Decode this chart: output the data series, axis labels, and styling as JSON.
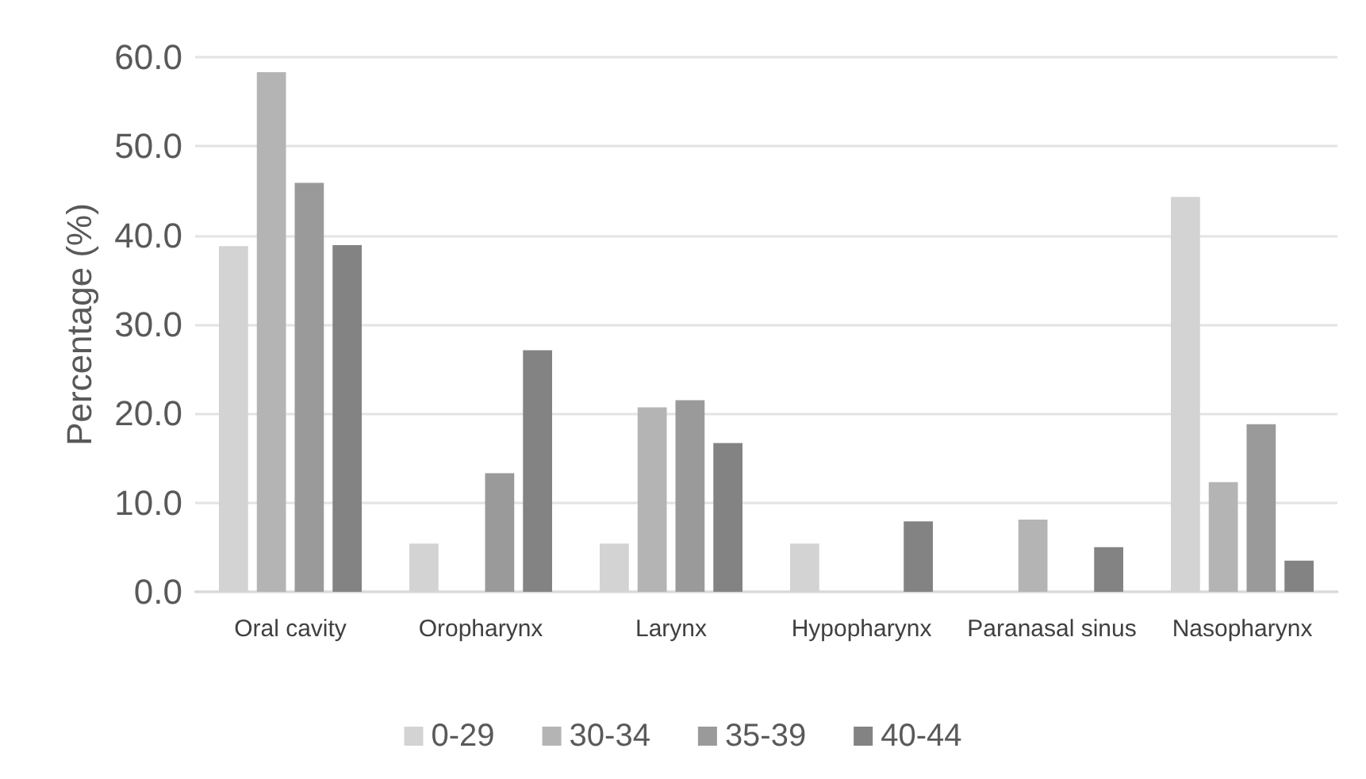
{
  "chart_data": {
    "type": "bar",
    "ylabel": "Percentage (%)",
    "categories": [
      "Oral cavity",
      "Oropharynx",
      "Larynx",
      "Hypopharynx",
      "Paranasal sinus",
      "Nasopharynx"
    ],
    "series": [
      {
        "name": "0-29",
        "color": "#d3d3d3",
        "values": [
          38.8,
          5.4,
          5.4,
          5.4,
          null,
          44.3
        ]
      },
      {
        "name": "30-34",
        "color": "#b4b4b4",
        "values": [
          58.3,
          null,
          20.7,
          null,
          8.1,
          12.3
        ]
      },
      {
        "name": "35-39",
        "color": "#9a9a9a",
        "values": [
          45.9,
          13.3,
          21.5,
          null,
          null,
          18.8
        ]
      },
      {
        "name": "40-44",
        "color": "#838383",
        "values": [
          38.9,
          27.1,
          16.7,
          7.9,
          5.0,
          3.5
        ]
      }
    ],
    "ylim": [
      0,
      60
    ],
    "yticks": [
      {
        "value": 0,
        "label": "0.0"
      },
      {
        "value": 10,
        "label": "10.0"
      },
      {
        "value": 20,
        "label": "20.0"
      },
      {
        "value": 30,
        "label": "30.0"
      },
      {
        "value": 40,
        "label": "40.0"
      },
      {
        "value": 50,
        "label": "50.0"
      },
      {
        "value": 60,
        "label": "60.0"
      }
    ],
    "grid": "y",
    "legend": "bottom"
  }
}
